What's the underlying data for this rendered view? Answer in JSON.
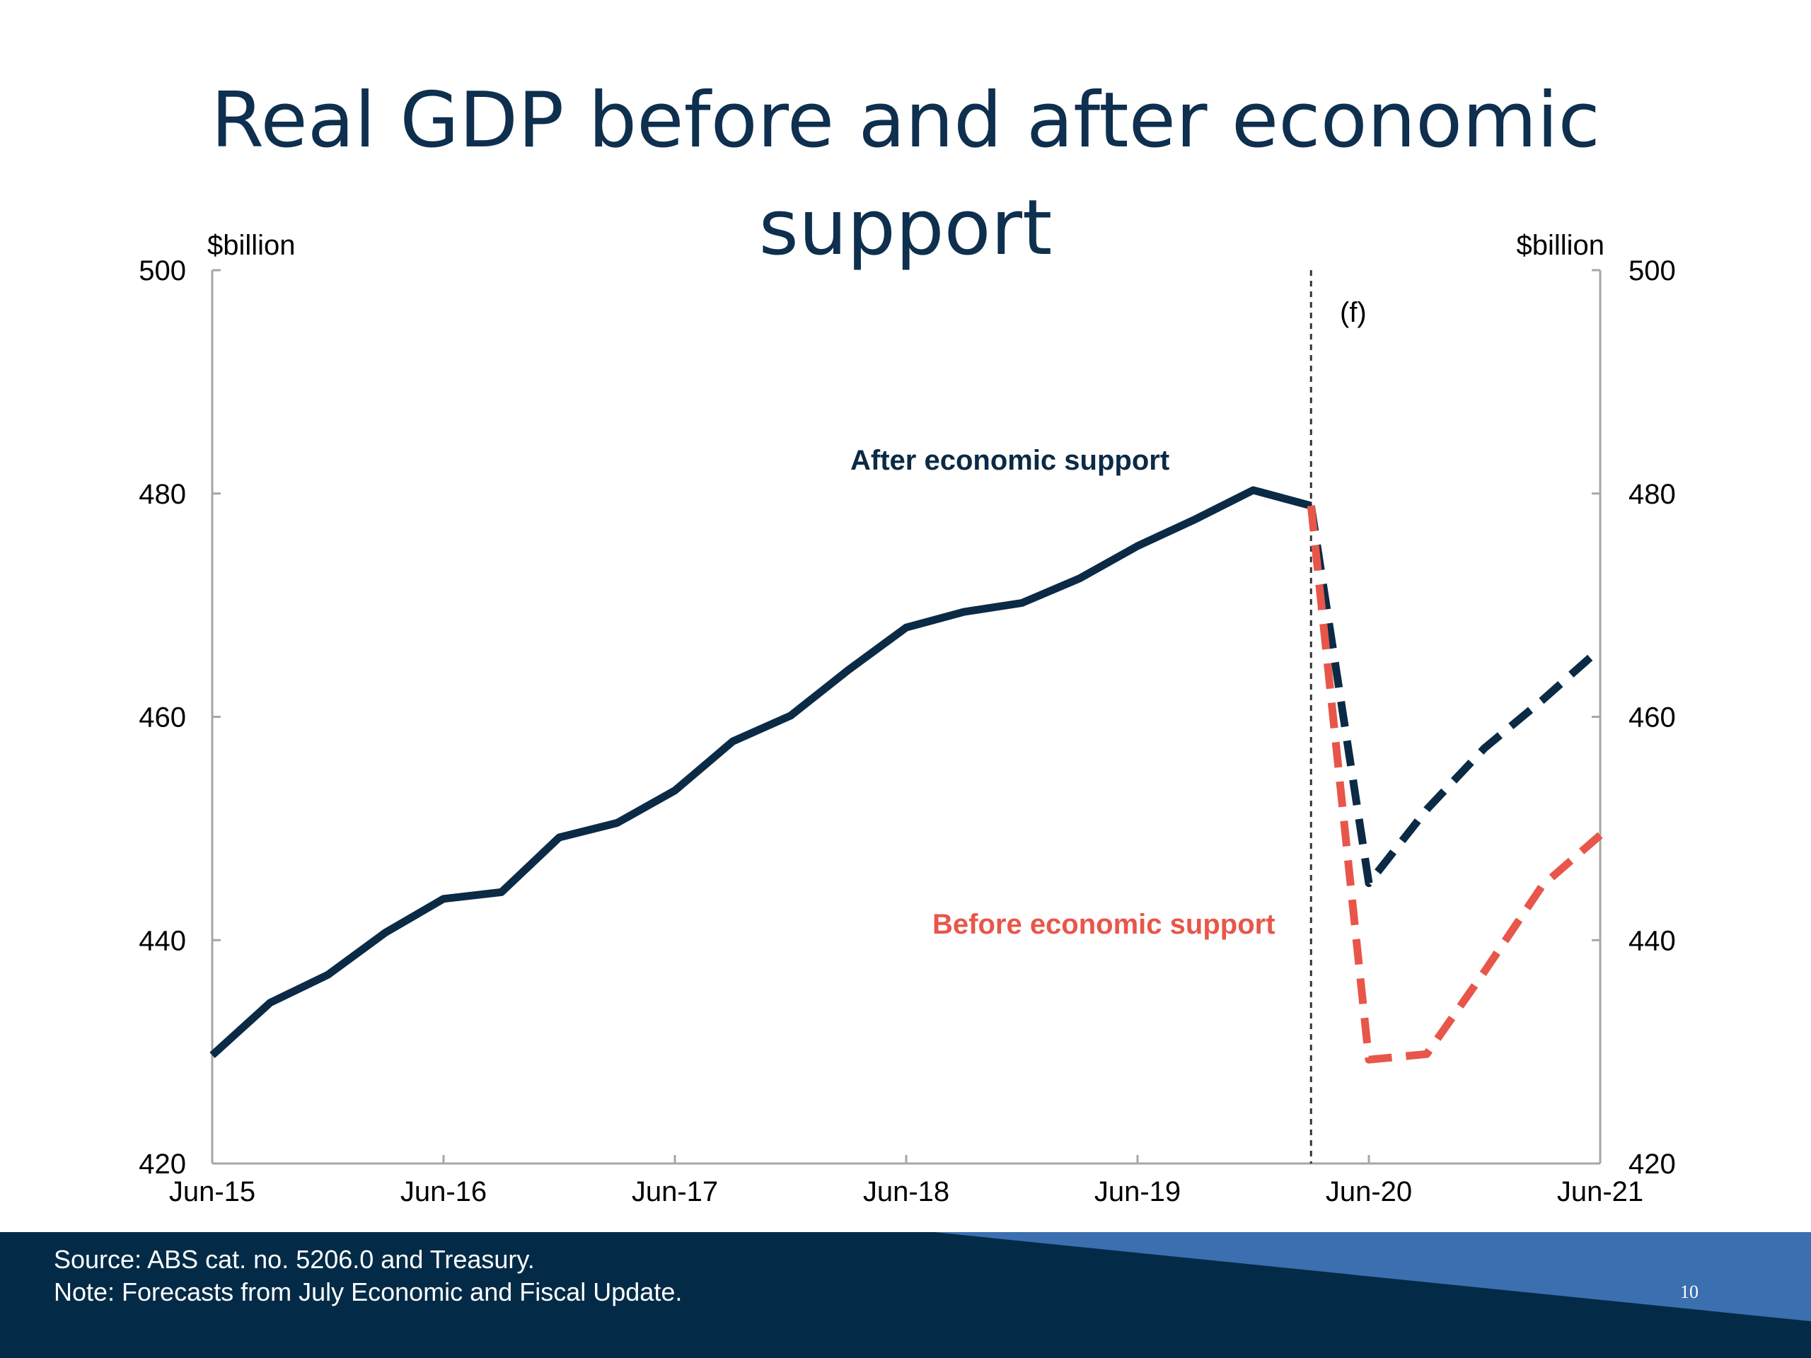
{
  "slide": {
    "title": "Real GDP before and after economic support",
    "page_number": "10"
  },
  "footer": {
    "source": "Source: ABS cat. no. 5206.0 and Treasury.",
    "note": "Note: Forecasts from July Economic and Fiscal Update."
  },
  "colors": {
    "title": "#0e2f4e",
    "after_series": "#0b2a45",
    "before_series": "#e8564a",
    "footer_bg": "#032b47",
    "footer_accent": "#3b6fb0"
  },
  "chart_data": {
    "type": "line",
    "xlabel": "",
    "ylabel_left": "$billion",
    "ylabel_right": "$billion",
    "ylim": [
      420,
      500
    ],
    "yticks": [
      420,
      440,
      460,
      480,
      500
    ],
    "x_tick_labels": [
      "Jun-15",
      "Jun-16",
      "Jun-17",
      "Jun-18",
      "Jun-19",
      "Jun-20",
      "Jun-21"
    ],
    "x_unit": "quarter",
    "grid": false,
    "forecast_marker": {
      "label": "(f)",
      "after": "Mar-20"
    },
    "series": [
      {
        "name": "After economic support",
        "style": "solid",
        "x": [
          "Jun-15",
          "Sep-15",
          "Dec-15",
          "Mar-16",
          "Jun-16",
          "Sep-16",
          "Dec-16",
          "Mar-17",
          "Jun-17",
          "Sep-17",
          "Dec-17",
          "Mar-18",
          "Jun-18",
          "Sep-18",
          "Dec-18",
          "Mar-19",
          "Jun-19",
          "Sep-19",
          "Dec-19",
          "Mar-20"
        ],
        "values": [
          429.7,
          434.4,
          436.9,
          440.7,
          443.7,
          444.3,
          449.2,
          450.5,
          453.4,
          457.8,
          460.1,
          464.2,
          468.0,
          469.4,
          470.2,
          472.4,
          475.3,
          477.7,
          480.3,
          478.9
        ]
      },
      {
        "name": "After economic support",
        "style": "dashed",
        "x": [
          "Mar-20",
          "Jun-20",
          "Sep-20",
          "Dec-20",
          "Mar-21",
          "Jun-21"
        ],
        "values": [
          478.9,
          445.1,
          451.7,
          457.2,
          461.5,
          466.1
        ]
      },
      {
        "name": "Before economic support",
        "style": "dashed",
        "x": [
          "Mar-20",
          "Jun-20",
          "Sep-20",
          "Dec-20",
          "Mar-21",
          "Jun-21"
        ],
        "values": [
          478.9,
          429.3,
          429.8,
          437.2,
          444.9,
          449.4
        ]
      }
    ]
  }
}
